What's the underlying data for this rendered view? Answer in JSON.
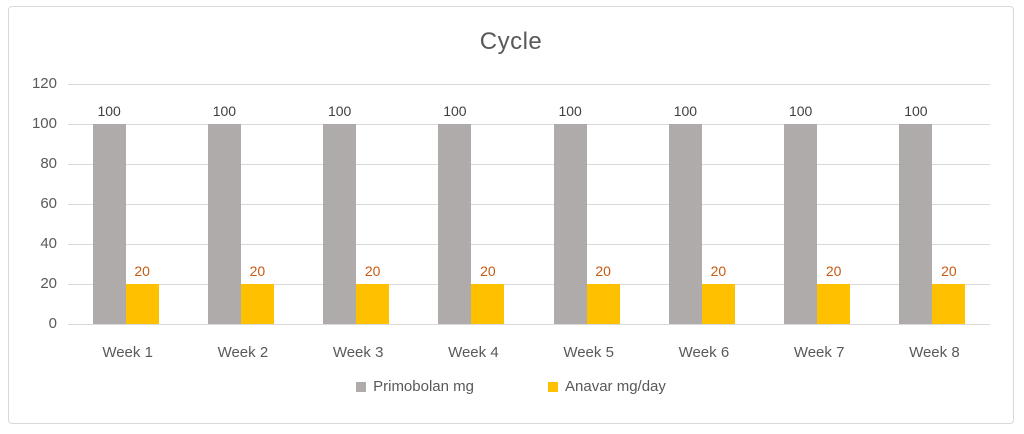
{
  "chart_data": {
    "type": "bar",
    "title": "Cycle",
    "categories": [
      "Week 1",
      "Week 2",
      "Week 3",
      "Week 4",
      "Week 5",
      "Week 6",
      "Week 7",
      "Week 8"
    ],
    "series": [
      {
        "name": "Primobolan mg",
        "values": [
          100,
          100,
          100,
          100,
          100,
          100,
          100,
          100
        ],
        "color": "#afabab",
        "label_color": "#404040"
      },
      {
        "name": "Anavar mg/day",
        "values": [
          20,
          20,
          20,
          20,
          20,
          20,
          20,
          20
        ],
        "color": "#ffc000",
        "label_color": "#c55a11"
      }
    ],
    "y_axis": {
      "min": 0,
      "max": 120,
      "ticks": [
        0,
        20,
        40,
        60,
        80,
        100,
        120
      ]
    },
    "data_labels": true,
    "grid": true,
    "legend_position": "bottom",
    "colors": {
      "axis_text": "#595959",
      "title_text": "#595959",
      "gridline": "#d9d9d9",
      "frame_border": "#d9d9d9",
      "background": "#ffffff"
    }
  }
}
